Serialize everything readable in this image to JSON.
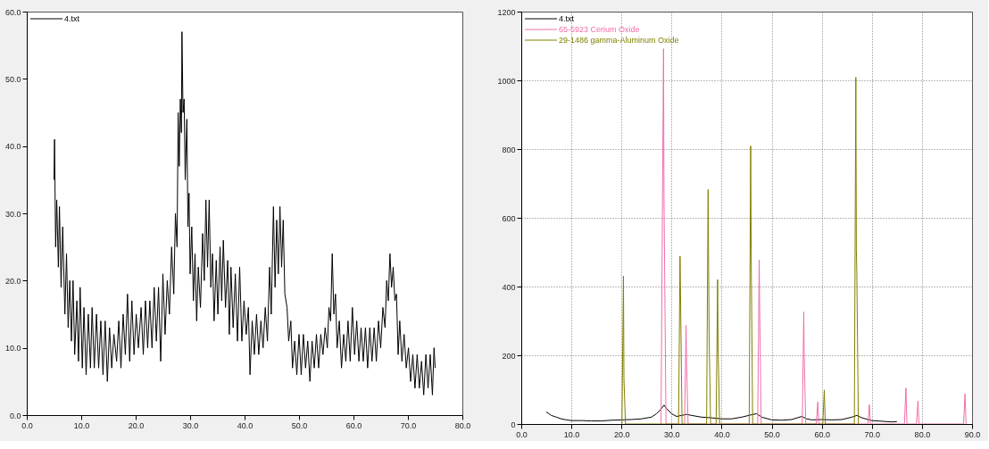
{
  "chart_data": [
    {
      "type": "line",
      "xlim": [
        0,
        80
      ],
      "ylim": [
        0,
        60
      ],
      "grid": false,
      "legend": "top left",
      "marker": "none",
      "xticks": [
        {
          "value": 0,
          "label": "0.0"
        },
        {
          "value": 10,
          "label": "10.0"
        },
        {
          "value": 20,
          "label": "20.0"
        },
        {
          "value": 30,
          "label": "30.0"
        },
        {
          "value": 40,
          "label": "40.0"
        },
        {
          "value": 50,
          "label": "50.0"
        },
        {
          "value": 60,
          "label": "60.0"
        },
        {
          "value": 70,
          "label": "70.0"
        },
        {
          "value": 80,
          "label": "80.0"
        }
      ],
      "yticks": [
        {
          "value": 0,
          "label": "0.0"
        },
        {
          "value": 10,
          "label": "10.0"
        },
        {
          "value": 20,
          "label": "20.0"
        },
        {
          "value": 30,
          "label": "30.0"
        },
        {
          "value": 40,
          "label": "40.0"
        },
        {
          "value": 50,
          "label": "50.0"
        },
        {
          "value": 60,
          "label": "60.0"
        }
      ],
      "series": [
        {
          "name": "4.txt",
          "color": "#000000",
          "x": [
            5.0,
            5.1,
            5.3,
            5.5,
            5.8,
            6.0,
            6.3,
            6.6,
            7.0,
            7.3,
            7.6,
            7.9,
            8.2,
            8.5,
            8.8,
            9.2,
            9.5,
            9.8,
            10.2,
            10.5,
            10.9,
            11.3,
            11.7,
            12.0,
            12.4,
            12.8,
            13.2,
            13.6,
            14.0,
            14.4,
            14.8,
            15.2,
            15.6,
            16.0,
            16.5,
            16.9,
            17.3,
            17.7,
            18.1,
            18.5,
            18.9,
            19.3,
            19.7,
            20.1,
            20.5,
            21.0,
            21.4,
            21.8,
            22.2,
            22.6,
            23.0,
            23.4,
            23.8,
            24.2,
            24.6,
            25.0,
            25.4,
            25.8,
            26.2,
            26.6,
            27.0,
            27.3,
            27.6,
            27.8,
            28.0,
            28.2,
            28.4,
            28.5,
            28.7,
            28.9,
            29.1,
            29.4,
            29.6,
            29.8,
            30.0,
            30.3,
            30.6,
            30.9,
            31.2,
            31.5,
            31.9,
            32.3,
            32.6,
            32.9,
            33.2,
            33.5,
            33.8,
            34.1,
            34.4,
            34.8,
            35.1,
            35.5,
            35.8,
            36.1,
            36.5,
            36.9,
            37.2,
            37.5,
            37.9,
            38.3,
            38.7,
            39.1,
            39.5,
            39.9,
            40.3,
            40.7,
            41.0,
            41.4,
            41.8,
            42.2,
            42.6,
            43.0,
            43.4,
            43.8,
            44.2,
            44.6,
            44.9,
            45.3,
            45.6,
            45.9,
            46.2,
            46.5,
            46.8,
            47.1,
            47.4,
            47.8,
            48.1,
            48.5,
            48.8,
            49.2,
            49.6,
            50.0,
            50.4,
            50.8,
            51.2,
            51.6,
            52.0,
            52.4,
            52.8,
            53.2,
            53.6,
            54.0,
            54.4,
            54.8,
            55.2,
            55.5,
            55.8,
            56.1,
            56.4,
            56.7,
            57.0,
            57.4,
            57.8,
            58.2,
            58.6,
            59.0,
            59.4,
            59.8,
            60.2,
            60.6,
            61.0,
            61.4,
            61.8,
            62.2,
            62.6,
            63.0,
            63.4,
            63.8,
            64.2,
            64.6,
            65.0,
            65.4,
            65.8,
            66.1,
            66.4,
            66.7,
            67.0,
            67.3,
            67.6,
            67.9,
            68.2,
            68.5,
            68.9,
            69.3,
            69.7,
            70.1,
            70.5,
            70.9,
            71.3,
            71.7,
            72.1,
            72.5,
            72.9,
            73.3,
            73.7,
            74.1,
            74.5,
            74.8,
            75.0
          ],
          "values": [
            35,
            41,
            25,
            32,
            22,
            31,
            19,
            28,
            15,
            24,
            13,
            20,
            11,
            20,
            9,
            17,
            8,
            19,
            7,
            16,
            6,
            15,
            7,
            16,
            7,
            15,
            7,
            14,
            6,
            14,
            5,
            13,
            7,
            12,
            8,
            14,
            7,
            15,
            9,
            18,
            8,
            17,
            9,
            15,
            10,
            16,
            9,
            17,
            10,
            17,
            10,
            19,
            11,
            19,
            8,
            21,
            12,
            20,
            15,
            25,
            18,
            30,
            25,
            45,
            37,
            47,
            42,
            57,
            45,
            47,
            35,
            44,
            28,
            33,
            21,
            28,
            17,
            24,
            14,
            22,
            16,
            27,
            20,
            32,
            22,
            32,
            19,
            24,
            14,
            23,
            15,
            25,
            17,
            26,
            16,
            23,
            12,
            22,
            13,
            21,
            11,
            22,
            11,
            17,
            12,
            16,
            6,
            14,
            9,
            15,
            9,
            14,
            10,
            16,
            11,
            22,
            15,
            31,
            19,
            29,
            21,
            31,
            22,
            29,
            18,
            16,
            11,
            14,
            7,
            11,
            6,
            12,
            6,
            12,
            7,
            11,
            5,
            11,
            7,
            12,
            7,
            12,
            9,
            13,
            10,
            16,
            14,
            24,
            15,
            18,
            10,
            14,
            7,
            12,
            8,
            14,
            8,
            16,
            9,
            14,
            8,
            13,
            8,
            13,
            7,
            13,
            8,
            13,
            8,
            14,
            10,
            16,
            13,
            20,
            17,
            24,
            19,
            22,
            17,
            18,
            9,
            14,
            8,
            12,
            7,
            10,
            5,
            9,
            4,
            9,
            4,
            8,
            3,
            9,
            4,
            9,
            3,
            10,
            7
          ]
        }
      ]
    },
    {
      "type": "line",
      "xlim": [
        0,
        90
      ],
      "ylim": [
        0,
        1200
      ],
      "grid": true,
      "legend": "top left",
      "marker": "none",
      "xticks": [
        {
          "value": 0,
          "label": "0.0"
        },
        {
          "value": 10,
          "label": "10.0"
        },
        {
          "value": 20,
          "label": "20.0"
        },
        {
          "value": 30,
          "label": "30.0"
        },
        {
          "value": 40,
          "label": "40.0"
        },
        {
          "value": 50,
          "label": "50.0"
        },
        {
          "value": 60,
          "label": "60.0"
        },
        {
          "value": 70,
          "label": "70.0"
        },
        {
          "value": 80,
          "label": "80.0"
        },
        {
          "value": 90,
          "label": "90.0"
        }
      ],
      "yticks": [
        0,
        200,
        400,
        600,
        800,
        1000,
        1200
      ],
      "series": [
        {
          "name": "4.txt",
          "color": "#000000",
          "x": [
            5,
            5.5,
            6,
            7,
            8,
            9,
            10,
            12,
            14,
            16,
            18,
            20,
            22,
            24,
            26,
            27,
            28,
            28.5,
            29,
            30,
            31,
            32,
            33,
            34,
            36,
            38,
            40,
            42,
            44,
            46,
            47,
            48,
            50,
            52,
            54,
            56,
            57,
            58,
            60,
            62,
            64,
            66,
            67,
            68,
            70,
            72,
            74,
            75
          ],
          "values": [
            35,
            30,
            25,
            20,
            15,
            12,
            10,
            10,
            9,
            9,
            11,
            12,
            13,
            15,
            20,
            30,
            45,
            55,
            45,
            30,
            22,
            25,
            28,
            25,
            20,
            18,
            15,
            15,
            20,
            27,
            30,
            20,
            12,
            11,
            13,
            22,
            15,
            12,
            13,
            12,
            13,
            20,
            25,
            18,
            10,
            8,
            6,
            7
          ]
        },
        {
          "name": "65-5923 Cerium Oxide",
          "color": "#f06eaa",
          "x": [
            27.9,
            28.4,
            28.5,
            28.9,
            32.6,
            32.9,
            33.0,
            33.3,
            47.2,
            47.5,
            47.6,
            47.9,
            56.1,
            56.4,
            56.5,
            56.8,
            58.9,
            59.2,
            59.4,
            69.2,
            69.5,
            69.7,
            76.5,
            76.8,
            77.0,
            78.9,
            79.2,
            79.4,
            88.3,
            88.6,
            88.8
          ],
          "values": [
            0,
            1092,
            656,
            0,
            0,
            287,
            176,
            0,
            0,
            478,
            334,
            0,
            0,
            326,
            195,
            0,
            0,
            64,
            0,
            0,
            56,
            0,
            0,
            105,
            0,
            0,
            67,
            0,
            0,
            88,
            0
          ]
        },
        {
          "name": "29-1486 gamma-Aluminum Oxide",
          "color": "#808000",
          "x": [
            20.1,
            20.4,
            20.5,
            20.8,
            31.4,
            31.7,
            31.8,
            32.1,
            37.0,
            37.3,
            37.4,
            37.5,
            37.8,
            38.9,
            39.2,
            39.3,
            39.6,
            45.5,
            45.8,
            45.9,
            46.2,
            60.2,
            60.5,
            60.7,
            66.5,
            66.8,
            66.9,
            67.0,
            67.3
          ],
          "values": [
            0,
            431,
            133,
            0,
            0,
            488,
            377,
            0,
            0,
            682,
            462,
            264,
            0,
            0,
            420,
            218,
            0,
            0,
            809,
            499,
            0,
            0,
            99,
            0,
            0,
            1009,
            508,
            437,
            0
          ]
        }
      ]
    }
  ]
}
